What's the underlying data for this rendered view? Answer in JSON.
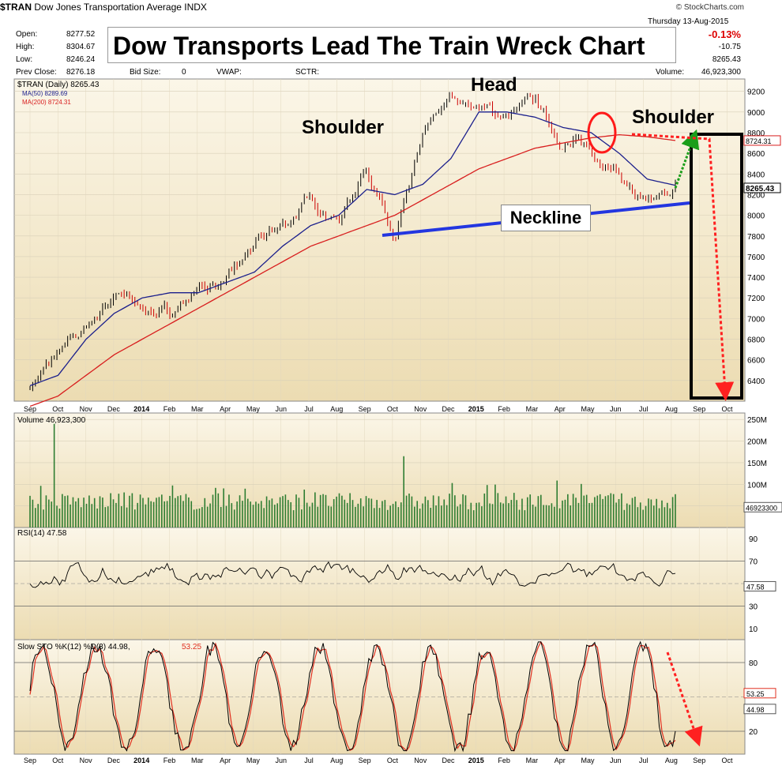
{
  "header": {
    "symbol": "$TRAN",
    "name": "Dow Jones Transportation Average",
    "exchange": "INDX",
    "credit": "© StockCharts.com",
    "date": "Thursday   13-Aug-2015",
    "open_label": "Open:",
    "open": "8277.52",
    "high_label": "High:",
    "high": "8304.67",
    "low_label": "Low:",
    "low": "8246.24",
    "prev_label": "Prev Close:",
    "prev": "8276.18",
    "bid_label": "Bid Size:",
    "bid": "0",
    "vwap_label": "VWAP:",
    "sctr_label": "SCTR:",
    "chg_pct": "-0.13%",
    "chg": "-10.75",
    "last": "8265.43",
    "volume_label": "Volume:",
    "volume": "46,923,300"
  },
  "title": "Dow Transports Lead The Train Wreck Chart",
  "annotations": {
    "head": "Head",
    "left_shoulder": "Shoulder",
    "right_shoulder": "Shoulder",
    "neckline": "Neckline"
  },
  "colors": {
    "panel_bg": "#f2e6c6",
    "price": "#000000",
    "ma50": "#1b1f8c",
    "ma200": "#d81e1e",
    "volume": "#2e7d32",
    "neckline": "#2336e0",
    "red_arrow": "#ff2020",
    "green_arrow": "#1a9e1a",
    "stoch_k": "#000000",
    "stoch_d": "#e03020"
  },
  "chart_data": [
    {
      "type": "line",
      "panel": "price",
      "legend": [
        "$TRAN (Daily) 8265.43",
        "MA(50) 8289.69",
        "MA(200) 8724.31"
      ],
      "series": [
        {
          "name": "$TRAN (Daily) 8265.43",
          "x": [
            "Sep",
            "Oct",
            "Nov",
            "Dec",
            "2014",
            "Feb",
            "Mar",
            "Apr",
            "May",
            "Jun",
            "Jul",
            "Aug",
            "Sep",
            "Oct",
            "Nov",
            "Dec",
            "2015",
            "Feb",
            "Mar",
            "Apr",
            "May",
            "Jun",
            "Jul",
            "Aug"
          ],
          "values": [
            6350,
            6650,
            6900,
            7250,
            7100,
            7050,
            7300,
            7350,
            7700,
            7900,
            8150,
            7950,
            8500,
            7700,
            8750,
            9150,
            9050,
            8950,
            9100,
            8700,
            8650,
            8400,
            8050,
            8265
          ]
        },
        {
          "name": "MA(50) 8289.69",
          "x": [
            "Sep",
            "Oct",
            "Nov",
            "Dec",
            "2014",
            "Feb",
            "Mar",
            "Apr",
            "May",
            "Jun",
            "Jul",
            "Aug",
            "Sep",
            "Oct",
            "Nov",
            "Dec",
            "2015",
            "Feb",
            "Mar",
            "Apr",
            "May",
            "Jun",
            "Jul",
            "Aug"
          ],
          "values": [
            6350,
            6450,
            6800,
            7050,
            7200,
            7250,
            7250,
            7350,
            7450,
            7700,
            7900,
            8000,
            8250,
            8200,
            8300,
            8550,
            9000,
            9000,
            8950,
            8850,
            8800,
            8600,
            8350,
            8290
          ]
        },
        {
          "name": "MA(200) 8724.31",
          "x": [
            "Sep",
            "Oct",
            "Nov",
            "Dec",
            "2014",
            "Feb",
            "Mar",
            "Apr",
            "May",
            "Jun",
            "Jul",
            "Aug",
            "Sep",
            "Oct",
            "Nov",
            "Dec",
            "2015",
            "Feb",
            "Mar",
            "Apr",
            "May",
            "Jun",
            "Jul",
            "Aug"
          ],
          "values": [
            6150,
            6250,
            6450,
            6650,
            6800,
            6950,
            7100,
            7250,
            7400,
            7550,
            7700,
            7800,
            7900,
            8000,
            8150,
            8300,
            8450,
            8550,
            8650,
            8700,
            8750,
            8780,
            8760,
            8724
          ]
        }
      ],
      "y_ticks": [
        6400,
        6600,
        6800,
        7000,
        7200,
        7400,
        7600,
        7800,
        8000,
        8200,
        8400,
        8600,
        8800,
        9000,
        9200
      ],
      "ylim": [
        6200,
        9320
      ],
      "x_labels": [
        "Sep",
        "Oct",
        "Nov",
        "Dec",
        "2014",
        "Feb",
        "Mar",
        "Apr",
        "May",
        "Jun",
        "Jul",
        "Aug",
        "Sep",
        "Oct",
        "Nov",
        "Dec",
        "2015",
        "Feb",
        "Mar",
        "Apr",
        "May",
        "Jun",
        "Jul",
        "Aug",
        "Sep",
        "Oct"
      ],
      "value_tags": [
        "8724.31",
        "8265.43"
      ]
    },
    {
      "type": "bar",
      "panel": "volume",
      "legend": "Volume 46,923,300",
      "y_ticks": [
        "50M",
        "100M",
        "150M",
        "200M",
        "250M"
      ],
      "ylim": [
        0,
        265
      ],
      "last_tag": "46923300",
      "typical_range_millions": [
        40,
        90
      ],
      "spikes_millions": [
        {
          "at": "Sep",
          "value": 240
        },
        {
          "at": "Oct",
          "value": 165
        }
      ]
    },
    {
      "type": "line",
      "panel": "rsi",
      "legend": "RSI(14) 47.58",
      "y_ticks": [
        10,
        30,
        50,
        70,
        90
      ],
      "ylim": [
        0,
        100
      ],
      "levels": [
        30,
        70
      ],
      "last_tag": "47.58"
    },
    {
      "type": "line",
      "panel": "stochastic",
      "legend_k": "Slow STO %K(12) %D(3) 44.98,",
      "legend_d": "53.25",
      "y_ticks": [
        20,
        80
      ],
      "ylim": [
        0,
        100
      ],
      "levels": [
        20,
        80
      ],
      "last_tags": [
        "53.25",
        "44.98"
      ],
      "x_labels": [
        "Sep",
        "Oct",
        "Nov",
        "Dec",
        "2014",
        "Feb",
        "Mar",
        "Apr",
        "May",
        "Jun",
        "Jul",
        "Aug",
        "Sep",
        "Oct",
        "Nov",
        "Dec",
        "2015",
        "Feb",
        "Mar",
        "Apr",
        "May",
        "Jun",
        "Jul",
        "Aug",
        "Sep",
        "Oct"
      ]
    }
  ]
}
